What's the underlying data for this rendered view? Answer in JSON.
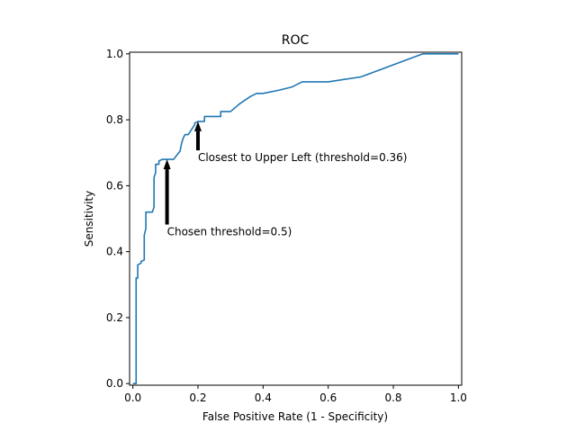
{
  "chart_data": {
    "type": "line",
    "title": "ROC",
    "xlabel": "False Positive Rate (1 - Specificity)",
    "ylabel": "Sensitivity",
    "xlim": [
      -0.01,
      1.01
    ],
    "ylim": [
      -0.005,
      1.005
    ],
    "grid": false,
    "x_ticks": [
      0.0,
      0.2,
      0.4,
      0.6,
      0.8,
      1.0
    ],
    "x_tick_labels": [
      "0.0",
      "0.2",
      "0.4",
      "0.6",
      "0.8",
      "1.0"
    ],
    "y_ticks": [
      0.0,
      0.2,
      0.4,
      0.6,
      0.8,
      1.0
    ],
    "y_tick_labels": [
      "0.0",
      "0.2",
      "0.4",
      "0.6",
      "0.8",
      "1.0"
    ],
    "series": [
      {
        "color": "#1f77b4",
        "x": [
          0.0,
          0.01,
          0.01,
          0.015,
          0.015,
          0.025,
          0.025,
          0.035,
          0.035,
          0.04,
          0.04,
          0.05,
          0.06,
          0.065,
          0.065,
          0.07,
          0.07,
          0.08,
          0.08,
          0.09,
          0.09,
          0.1,
          0.1,
          0.105,
          0.125,
          0.145,
          0.15,
          0.155,
          0.16,
          0.17,
          0.18,
          0.19,
          0.19,
          0.2,
          0.22,
          0.22,
          0.27,
          0.27,
          0.3,
          0.33,
          0.36,
          0.38,
          0.4,
          0.45,
          0.49,
          0.52,
          0.6,
          0.7,
          0.89,
          1.0
        ],
        "y": [
          0.0,
          0.0,
          0.32,
          0.32,
          0.36,
          0.365,
          0.37,
          0.375,
          0.45,
          0.47,
          0.52,
          0.52,
          0.52,
          0.535,
          0.625,
          0.64,
          0.665,
          0.665,
          0.675,
          0.68,
          0.68,
          0.68,
          0.68,
          0.68,
          0.68,
          0.705,
          0.73,
          0.745,
          0.755,
          0.755,
          0.77,
          0.785,
          0.79,
          0.795,
          0.795,
          0.81,
          0.81,
          0.825,
          0.825,
          0.85,
          0.87,
          0.88,
          0.88,
          0.89,
          0.9,
          0.915,
          0.915,
          0.93,
          1.0,
          1.0
        ]
      }
    ],
    "annotations": [
      {
        "text": "Closest to Upper Left (threshold=0.36)",
        "point": [
          0.2,
          0.795
        ],
        "text_pos": [
          0.2,
          0.68
        ]
      },
      {
        "text": "Chosen threshold=0.5)",
        "point": [
          0.105,
          0.68
        ],
        "text_pos": [
          0.105,
          0.455
        ]
      }
    ]
  }
}
